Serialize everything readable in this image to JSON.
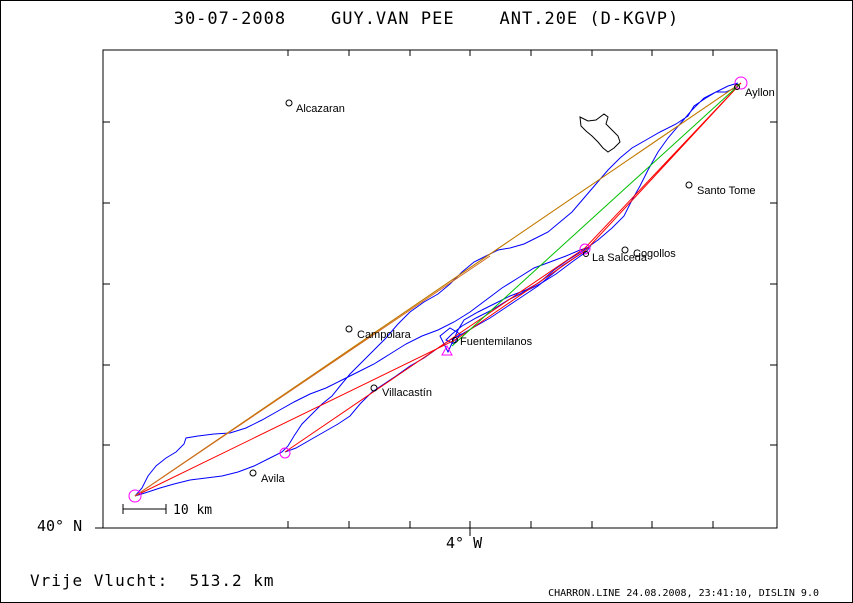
{
  "header": {
    "title": "30-07-2008    GUY.VAN PEE    ANT.20E (D-KGVP)"
  },
  "axes": {
    "lat_label": "40° N",
    "lon_label": "4° W"
  },
  "scale_bar": {
    "label": "10 km"
  },
  "footer": {
    "distance": "Vrije Vlucht:  513.2 km",
    "credit": "CHARRON.LINE 24.08.2008, 23:41:10, DISLIN 9.0"
  },
  "places": [
    {
      "id": "alcazaran",
      "name": "Alcazaran"
    },
    {
      "id": "ayllon",
      "name": "Ayllon"
    },
    {
      "id": "santo-tome",
      "name": "Santo Tome"
    },
    {
      "id": "cogollos",
      "name": "Cogollos"
    },
    {
      "id": "la-salceda",
      "name": "La Salceda"
    },
    {
      "id": "campolara",
      "name": "Campolara"
    },
    {
      "id": "fuentemilanos",
      "name": "Fuentemilanos"
    },
    {
      "id": "villacastin",
      "name": "Villacastín"
    },
    {
      "id": "avila",
      "name": "Avila"
    }
  ],
  "colors": {
    "track": "#0000ff",
    "turnpoint_circle": "#ff00ff",
    "task_leg_orange": "#d2691e",
    "task_leg_red": "#ff0000",
    "task_leg_green": "#00c000",
    "outline": "#000000"
  }
}
